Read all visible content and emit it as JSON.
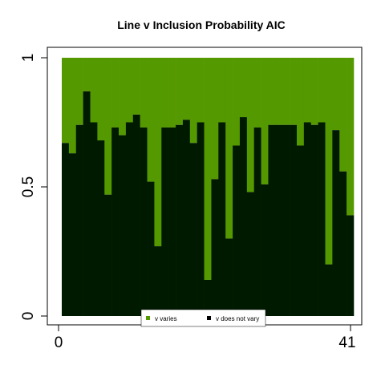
{
  "chart_data": {
    "type": "bar",
    "stacked": true,
    "title": "Line v Inclusion Probability AIC",
    "xlabel": "",
    "ylabel": "",
    "x_tick_labels": [
      "0",
      "41"
    ],
    "y_tick_labels": [
      "0",
      "0.5",
      "1"
    ],
    "ylim": [
      0,
      1
    ],
    "x_range": [
      0,
      41
    ],
    "grid": false,
    "legend_placement": "bottom-center",
    "series": [
      {
        "name": "v does not vary",
        "color": "#001a00",
        "values": [
          0.67,
          0.63,
          0.74,
          0.87,
          0.75,
          0.68,
          0.47,
          0.73,
          0.7,
          0.75,
          0.78,
          0.73,
          0.52,
          0.27,
          0.73,
          0.73,
          0.74,
          0.76,
          0.67,
          0.75,
          0.14,
          0.53,
          0.75,
          0.3,
          0.66,
          0.77,
          0.48,
          0.73,
          0.51,
          0.74,
          0.74,
          0.74,
          0.74,
          0.66,
          0.75,
          0.74,
          0.75,
          0.2,
          0.72,
          0.56,
          0.39
        ]
      },
      {
        "name": "v varies",
        "color": "#559900"
      }
    ]
  }
}
